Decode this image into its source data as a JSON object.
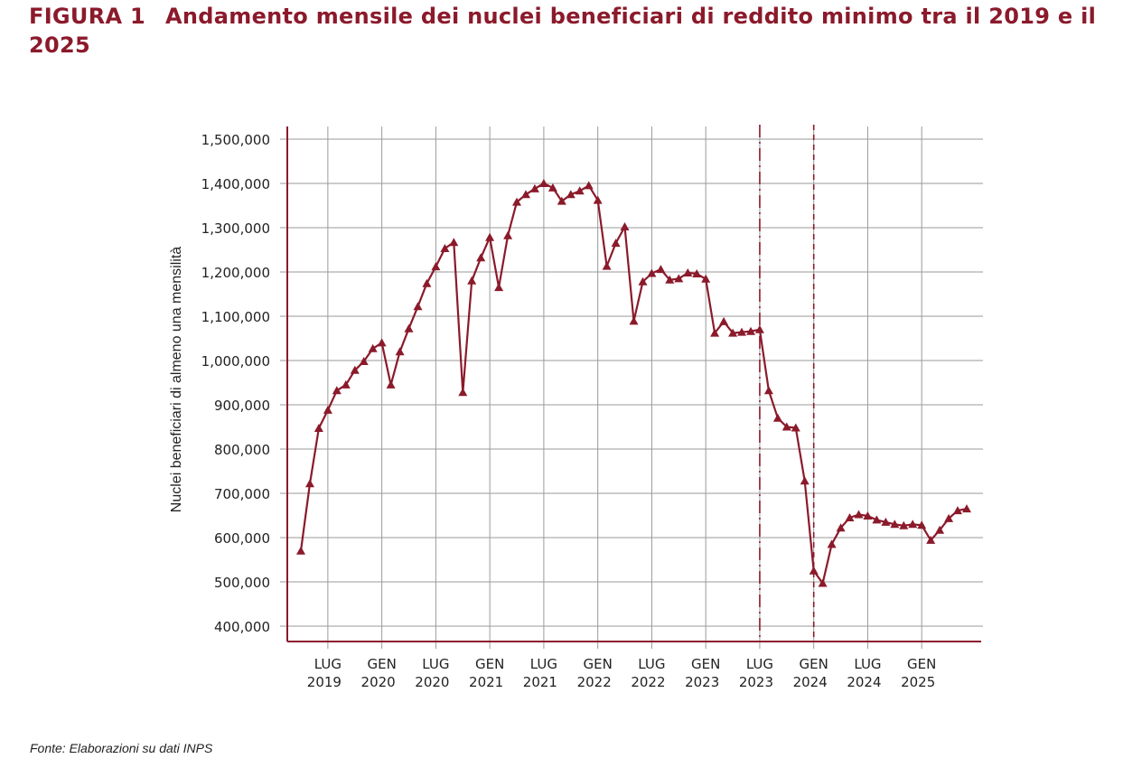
{
  "figure": {
    "label": "FIGURA 1",
    "title": "Andamento mensile dei nuclei beneficiari di reddito minimo tra il 2019 e il 2025"
  },
  "source": "Fonte: Elaborazioni su dati INPS",
  "chart_data": {
    "type": "line",
    "title": "Andamento mensile dei nuclei beneficiari di reddito minimo tra il 2019 e il 2025",
    "xlabel": "",
    "ylabel": "Nuclei beneficiari di almeno una mensilità",
    "ylim": [
      370000,
      1530000
    ],
    "yticks": [
      400000,
      500000,
      600000,
      700000,
      800000,
      900000,
      1000000,
      1100000,
      1200000,
      1300000,
      1400000,
      1500000
    ],
    "ytick_labels": [
      "400,000",
      "500,000",
      "600,000",
      "700,000",
      "800,000",
      "900,000",
      "1,000,000",
      "1,100,000",
      "1,200,000",
      "1,300,000",
      "1,400,000",
      "1,500,000"
    ],
    "xlim": [
      "2019-04",
      "2025-10"
    ],
    "xticks": [
      {
        "x": "2019-07",
        "line1": "LUG",
        "line2": "2019"
      },
      {
        "x": "2020-01",
        "line1": "GEN",
        "line2": "2020"
      },
      {
        "x": "2020-07",
        "line1": "LUG",
        "line2": "2020"
      },
      {
        "x": "2021-01",
        "line1": "GEN",
        "line2": "2021"
      },
      {
        "x": "2021-07",
        "line1": "LUG",
        "line2": "2021"
      },
      {
        "x": "2022-01",
        "line1": "GEN",
        "line2": "2022"
      },
      {
        "x": "2022-07",
        "line1": "LUG",
        "line2": "2022"
      },
      {
        "x": "2023-01",
        "line1": "GEN",
        "line2": "2023"
      },
      {
        "x": "2023-07",
        "line1": "LUG",
        "line2": "2023"
      },
      {
        "x": "2024-01",
        "line1": "GEN",
        "line2": "2024"
      },
      {
        "x": "2024-07",
        "line1": "LUG",
        "line2": "2024"
      },
      {
        "x": "2025-01",
        "line1": "GEN",
        "line2": "2025"
      }
    ],
    "grid": true,
    "legend": "none",
    "vertical_markers": [
      {
        "x": "2023-07",
        "style": "dash-dot"
      },
      {
        "x": "2024-01",
        "style": "dashed"
      }
    ],
    "series": [
      {
        "color": "#8b1a2b",
        "marker": "triangle",
        "points": [
          {
            "x": "2019-04",
            "y": 570000
          },
          {
            "x": "2019-05",
            "y": 722000
          },
          {
            "x": "2019-06",
            "y": 847000
          },
          {
            "x": "2019-07",
            "y": 888000
          },
          {
            "x": "2019-08",
            "y": 932000
          },
          {
            "x": "2019-09",
            "y": 945000
          },
          {
            "x": "2019-10",
            "y": 978000
          },
          {
            "x": "2019-11",
            "y": 998000
          },
          {
            "x": "2019-12",
            "y": 1027000
          },
          {
            "x": "2020-01",
            "y": 1040000
          },
          {
            "x": "2020-02",
            "y": 945000
          },
          {
            "x": "2020-03",
            "y": 1020000
          },
          {
            "x": "2020-04",
            "y": 1072000
          },
          {
            "x": "2020-05",
            "y": 1122000
          },
          {
            "x": "2020-06",
            "y": 1174000
          },
          {
            "x": "2020-07",
            "y": 1212000
          },
          {
            "x": "2020-08",
            "y": 1253000
          },
          {
            "x": "2020-09",
            "y": 1267000
          },
          {
            "x": "2020-10",
            "y": 928000
          },
          {
            "x": "2020-11",
            "y": 1180000
          },
          {
            "x": "2020-12",
            "y": 1232000
          },
          {
            "x": "2021-01",
            "y": 1278000
          },
          {
            "x": "2021-02",
            "y": 1165000
          },
          {
            "x": "2021-03",
            "y": 1282000
          },
          {
            "x": "2021-04",
            "y": 1358000
          },
          {
            "x": "2021-05",
            "y": 1375000
          },
          {
            "x": "2021-06",
            "y": 1388000
          },
          {
            "x": "2021-07",
            "y": 1400000
          },
          {
            "x": "2021-08",
            "y": 1390000
          },
          {
            "x": "2021-09",
            "y": 1360000
          },
          {
            "x": "2021-10",
            "y": 1375000
          },
          {
            "x": "2021-11",
            "y": 1383000
          },
          {
            "x": "2021-12",
            "y": 1395000
          },
          {
            "x": "2022-01",
            "y": 1362000
          },
          {
            "x": "2022-02",
            "y": 1213000
          },
          {
            "x": "2022-03",
            "y": 1265000
          },
          {
            "x": "2022-04",
            "y": 1302000
          },
          {
            "x": "2022-05",
            "y": 1089000
          },
          {
            "x": "2022-06",
            "y": 1178000
          },
          {
            "x": "2022-07",
            "y": 1197000
          },
          {
            "x": "2022-08",
            "y": 1206000
          },
          {
            "x": "2022-09",
            "y": 1182000
          },
          {
            "x": "2022-10",
            "y": 1185000
          },
          {
            "x": "2022-11",
            "y": 1198000
          },
          {
            "x": "2022-12",
            "y": 1196000
          },
          {
            "x": "2023-01",
            "y": 1184000
          },
          {
            "x": "2023-02",
            "y": 1062000
          },
          {
            "x": "2023-03",
            "y": 1088000
          },
          {
            "x": "2023-04",
            "y": 1062000
          },
          {
            "x": "2023-05",
            "y": 1064000
          },
          {
            "x": "2023-06",
            "y": 1066000
          },
          {
            "x": "2023-07",
            "y": 1070000
          },
          {
            "x": "2023-08",
            "y": 932000
          },
          {
            "x": "2023-09",
            "y": 870000
          },
          {
            "x": "2023-10",
            "y": 850000
          },
          {
            "x": "2023-11",
            "y": 848000
          },
          {
            "x": "2023-12",
            "y": 728000
          },
          {
            "x": "2024-01",
            "y": 525000
          },
          {
            "x": "2024-02",
            "y": 497000
          },
          {
            "x": "2024-03",
            "y": 585000
          },
          {
            "x": "2024-04",
            "y": 622000
          },
          {
            "x": "2024-05",
            "y": 645000
          },
          {
            "x": "2024-06",
            "y": 652000
          },
          {
            "x": "2024-07",
            "y": 649000
          },
          {
            "x": "2024-08",
            "y": 640000
          },
          {
            "x": "2024-09",
            "y": 635000
          },
          {
            "x": "2024-10",
            "y": 630000
          },
          {
            "x": "2024-11",
            "y": 627000
          },
          {
            "x": "2024-12",
            "y": 630000
          },
          {
            "x": "2025-01",
            "y": 628000
          },
          {
            "x": "2025-02",
            "y": 594000
          },
          {
            "x": "2025-03",
            "y": 617000
          },
          {
            "x": "2025-04",
            "y": 643000
          },
          {
            "x": "2025-05",
            "y": 661000
          },
          {
            "x": "2025-06",
            "y": 665000
          }
        ]
      }
    ]
  }
}
